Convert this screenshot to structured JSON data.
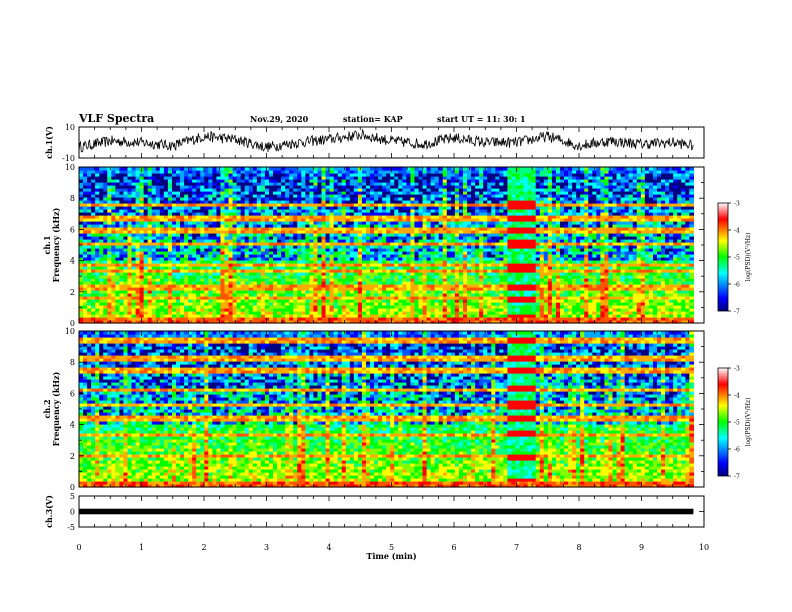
{
  "header": {
    "title": "VLF Spectra",
    "date": "Nov.29, 2020",
    "station": "station= KAP",
    "start_time": "start  UT =   11: 30: 1"
  },
  "chart_data": [
    {
      "type": "line",
      "panel": "waveform-ch1",
      "ylabel": "ch.1(V)",
      "ylim": [
        -10,
        10
      ],
      "yticks": [
        10,
        -10
      ],
      "xlim": [
        0,
        10
      ],
      "x_range_of_data": [
        0,
        9.83
      ],
      "series": [
        {
          "x": [
            0,
            0.5,
            1,
            1.5,
            2,
            2.5,
            3,
            3.5,
            4,
            4.5,
            5,
            5.5,
            6,
            6.5,
            7,
            7.5,
            8,
            8.5,
            9,
            9.5,
            9.83
          ],
          "values": [
            -3,
            1,
            0,
            -2,
            4,
            2,
            -3,
            0,
            2,
            5,
            1,
            -1,
            3,
            0,
            0,
            4,
            -2,
            1,
            -1,
            0,
            -2
          ]
        }
      ]
    },
    {
      "type": "heatmap",
      "panel": "spectrogram-ch1",
      "ylabel": "ch.1 Frequency (kHz)",
      "ylim": [
        0,
        10
      ],
      "yticks": [
        0,
        2,
        4,
        6,
        8,
        10
      ],
      "xlim": [
        0,
        10
      ],
      "x_range_of_data": [
        0,
        9.83
      ],
      "colorbar": {
        "label": "log(PSD)(V²/Hz)",
        "range": [
          -7,
          -3
        ],
        "ticks": [
          -3,
          -4,
          -5,
          -6,
          -7
        ]
      },
      "features": {
        "horizontal_bands_kHz": [
          0.2,
          1.5,
          2.2,
          3.3,
          3.6,
          5.0,
          5.9,
          6.6,
          7.5
        ],
        "event_window_min": [
          6.8,
          7.3
        ]
      }
    },
    {
      "type": "heatmap",
      "panel": "spectrogram-ch2",
      "ylabel": "ch.2 Frequency (kHz)",
      "ylim": [
        0,
        10
      ],
      "yticks": [
        0,
        2,
        4,
        6,
        8,
        10
      ],
      "xlim": [
        0,
        10
      ],
      "x_range_of_data": [
        0,
        9.83
      ],
      "colorbar": {
        "label": "log(PSD)(V²/Hz)",
        "range": [
          -7,
          -3
        ],
        "ticks": [
          -3,
          -4,
          -5,
          -6,
          -7
        ]
      },
      "features": {
        "horizontal_bands_kHz": [
          0.2,
          1.9,
          3.3,
          4.3,
          5.2,
          6.2,
          7.4,
          8.2,
          9.3
        ],
        "event_window_min": [
          6.8,
          7.3
        ]
      }
    },
    {
      "type": "line",
      "panel": "waveform-ch3",
      "ylabel": "ch.3(V)",
      "ylim": [
        -5,
        5
      ],
      "yticks": [
        5,
        0,
        -5
      ],
      "xlim": [
        0,
        10
      ],
      "x_range_of_data": [
        0,
        9.83
      ],
      "series": [
        {
          "x": [
            0,
            9.83
          ],
          "values": [
            0,
            0
          ]
        }
      ],
      "xlabel": "Time (min)",
      "xticks": [
        0,
        1,
        2,
        3,
        4,
        5,
        6,
        7,
        8,
        9,
        10
      ]
    }
  ]
}
